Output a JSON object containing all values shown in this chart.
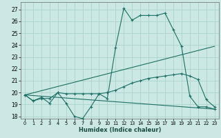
{
  "title": "",
  "xlabel": "Humidex (Indice chaleur)",
  "bg_color": "#cce8e4",
  "grid_color": "#aad4cc",
  "line_color": "#1a6e64",
  "xlim": [
    -0.5,
    23.5
  ],
  "ylim": [
    17.8,
    27.6
  ],
  "yticks": [
    18,
    19,
    20,
    21,
    22,
    23,
    24,
    25,
    26,
    27
  ],
  "xticks": [
    0,
    1,
    2,
    3,
    4,
    5,
    6,
    7,
    8,
    9,
    10,
    11,
    12,
    13,
    14,
    15,
    16,
    17,
    18,
    19,
    20,
    21,
    22,
    23
  ],
  "line1_x": [
    0,
    1,
    2,
    3,
    4,
    5,
    6,
    7,
    8,
    9,
    10,
    11,
    12,
    13,
    14,
    15,
    16,
    17,
    18,
    19,
    20,
    21,
    22,
    23
  ],
  "line1_y": [
    19.8,
    19.3,
    19.6,
    19.1,
    20.0,
    19.1,
    18.0,
    17.8,
    18.8,
    19.9,
    19.5,
    23.8,
    27.1,
    26.1,
    26.5,
    26.5,
    26.5,
    26.7,
    25.3,
    23.9,
    19.7,
    18.8,
    18.8,
    18.6
  ],
  "line2_x": [
    0,
    1,
    2,
    3,
    4,
    5,
    6,
    7,
    8,
    9,
    10,
    11,
    12,
    13,
    14,
    15,
    16,
    17,
    18,
    19,
    20,
    21,
    22,
    23
  ],
  "line2_y": [
    19.8,
    19.3,
    19.5,
    19.5,
    20.0,
    19.9,
    19.9,
    19.9,
    19.9,
    19.9,
    20.0,
    20.2,
    20.5,
    20.8,
    21.0,
    21.2,
    21.3,
    21.4,
    21.5,
    21.6,
    21.4,
    21.1,
    19.4,
    18.8
  ],
  "line3_x": [
    0,
    23
  ],
  "line3_y": [
    19.8,
    23.9
  ],
  "line4_x": [
    0,
    23
  ],
  "line4_y": [
    19.8,
    18.6
  ]
}
